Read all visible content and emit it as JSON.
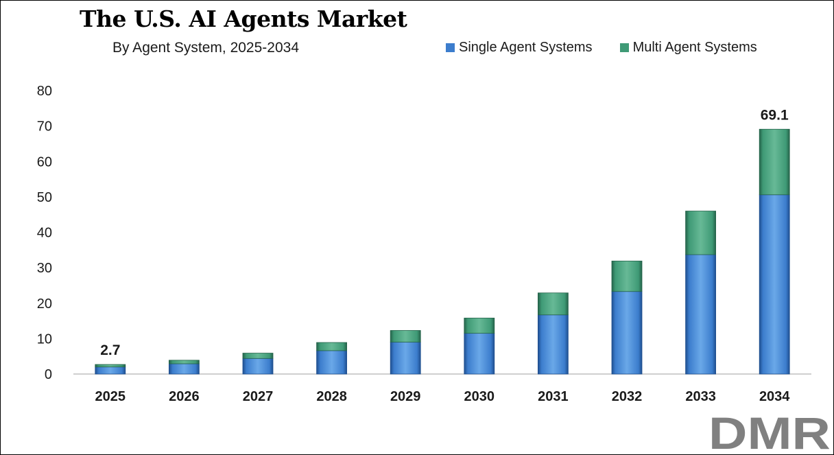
{
  "colors": {
    "single": "#3c7dcd",
    "single_dark": "#1f4f8f",
    "single_light": "#6aa8e8",
    "multi": "#3f9a76",
    "multi_dark": "#25634a",
    "multi_light": "#67b996",
    "logo_gray": "#808080",
    "logo_red": "#d9342b"
  },
  "logo": {
    "text": "DMR"
  },
  "chart_data": {
    "type": "bar",
    "stacked": true,
    "title": "The U.S. AI Agents Market",
    "subtitle": "By Agent System, 2025-2034",
    "xlabel": "",
    "ylabel": "",
    "categories": [
      "2025",
      "2026",
      "2027",
      "2028",
      "2029",
      "2030",
      "2031",
      "2032",
      "2033",
      "2034"
    ],
    "series": [
      {
        "name": "Single Agent Systems",
        "values": [
          2.0,
          2.9,
          4.4,
          6.6,
          9.0,
          11.5,
          16.7,
          23.3,
          33.7,
          50.6
        ]
      },
      {
        "name": "Multi Agent Systems",
        "values": [
          0.7,
          1.0,
          1.5,
          2.3,
          3.3,
          4.3,
          6.2,
          8.6,
          12.3,
          18.5
        ]
      }
    ],
    "totals_labels": [
      {
        "category": "2025",
        "text": "2.7"
      },
      {
        "category": "2034",
        "text": "69.1"
      }
    ],
    "ylim": [
      0,
      80
    ],
    "yticks": [
      "0",
      "10",
      "20",
      "30",
      "40",
      "50",
      "60",
      "70",
      "80"
    ],
    "grid": false,
    "legend_position": "top-right"
  }
}
